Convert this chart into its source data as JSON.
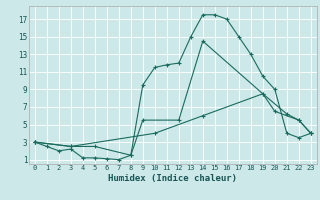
{
  "xlabel": "Humidex (Indice chaleur)",
  "bg_color": "#cce8e8",
  "line_color": "#1a6b5e",
  "grid_color": "#ffffff",
  "xlim": [
    -0.5,
    23.5
  ],
  "ylim": [
    0.5,
    18.5
  ],
  "xticks": [
    0,
    1,
    2,
    3,
    4,
    5,
    6,
    7,
    8,
    9,
    10,
    11,
    12,
    13,
    14,
    15,
    16,
    17,
    18,
    19,
    20,
    21,
    22,
    23
  ],
  "yticks": [
    1,
    3,
    5,
    7,
    9,
    11,
    13,
    15,
    17
  ],
  "curve1_x": [
    0,
    1,
    2,
    3,
    4,
    5,
    6,
    7,
    8,
    9,
    10,
    11,
    12,
    13,
    14,
    15,
    16,
    17,
    18,
    19,
    20,
    21,
    22,
    23
  ],
  "curve1_y": [
    3,
    2.5,
    2,
    2.2,
    1.2,
    1.2,
    1.1,
    1.0,
    1.5,
    9.5,
    11.5,
    11.8,
    12,
    15,
    17.5,
    17.5,
    17,
    15,
    13,
    10.5,
    9,
    4,
    3.5,
    4
  ],
  "curve2_x": [
    0,
    3,
    5,
    8,
    9,
    12,
    14,
    19,
    20,
    22,
    23
  ],
  "curve2_y": [
    3,
    2.5,
    2.5,
    1.5,
    5.5,
    5.5,
    14.5,
    8.5,
    6.5,
    5.5,
    4
  ],
  "curve3_x": [
    0,
    3,
    10,
    14,
    19,
    21,
    22,
    23
  ],
  "curve3_y": [
    3,
    2.5,
    4,
    6,
    8.5,
    6.2,
    5.5,
    4
  ]
}
